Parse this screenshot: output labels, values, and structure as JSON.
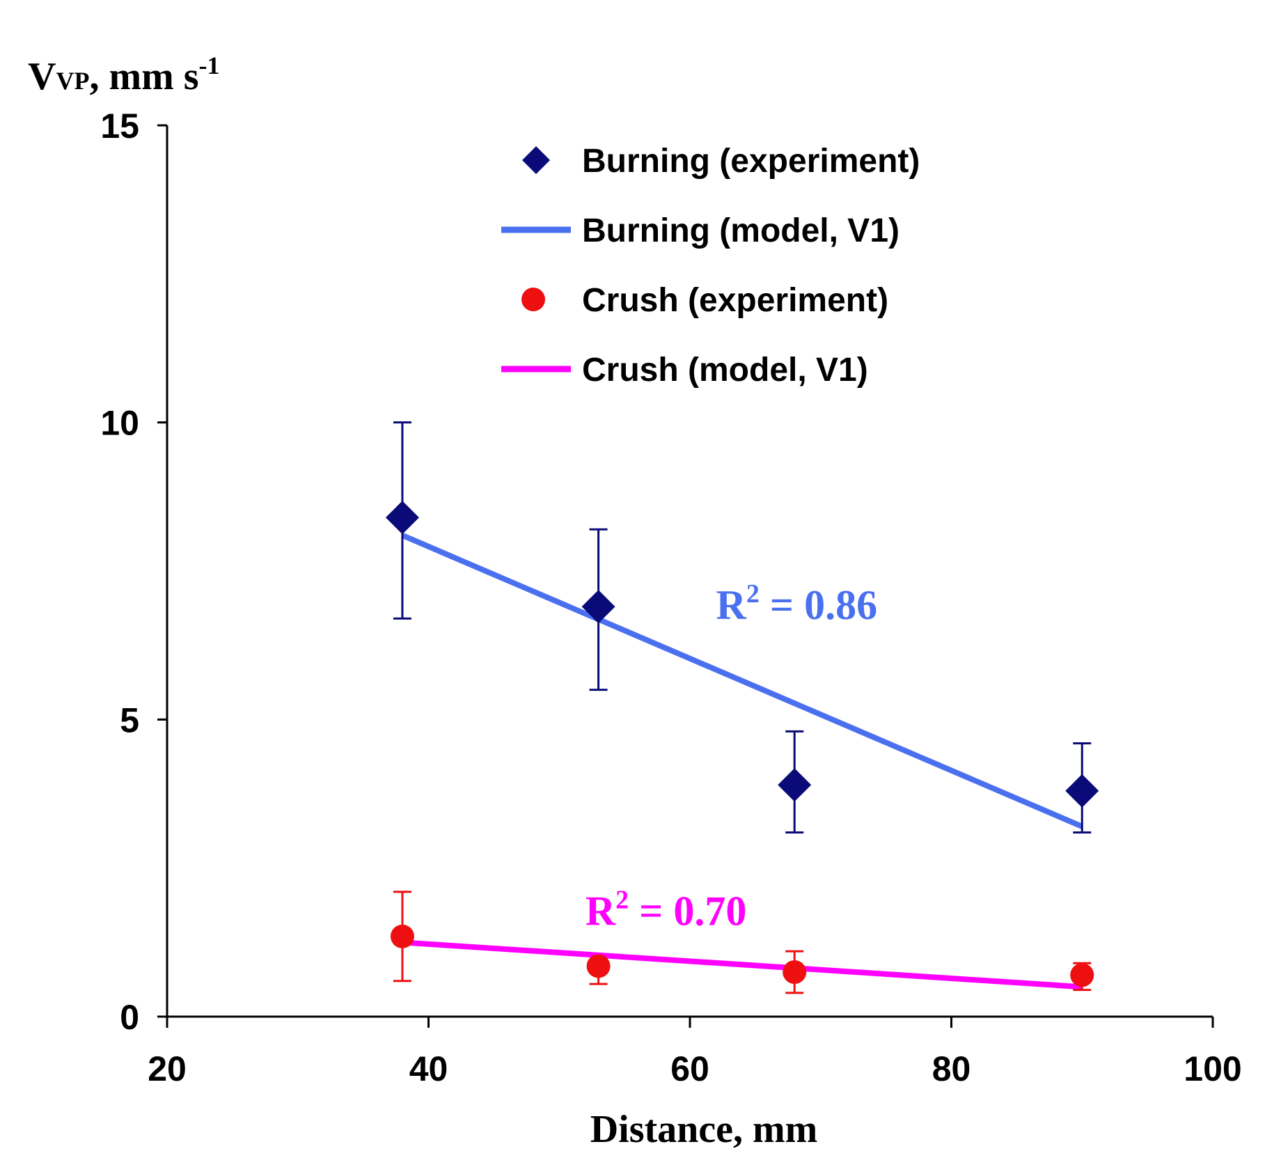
{
  "chart_data": {
    "type": "scatter",
    "title": "",
    "ylabel": {
      "main": "V",
      "sub": "VP",
      "rest": ", mm s",
      "sup": "-1"
    },
    "xlabel": "Distance, mm",
    "xlim": [
      20,
      100
    ],
    "ylim": [
      0,
      15
    ],
    "xticks": [
      "20",
      "40",
      "60",
      "80",
      "100"
    ],
    "yticks": [
      "0",
      "5",
      "10",
      "15"
    ],
    "grid": false,
    "legend_position": "top-center",
    "series": [
      {
        "name": "Burning (experiment)",
        "kind": "points",
        "marker": "diamond",
        "color": "#0a0a78",
        "x": [
          38,
          53,
          68,
          90
        ],
        "y": [
          8.4,
          6.9,
          3.9,
          3.8
        ],
        "err_low": [
          6.7,
          5.5,
          3.1,
          3.1
        ],
        "err_high": [
          10.0,
          8.2,
          4.8,
          4.6
        ]
      },
      {
        "name": "Burning (model, V1)",
        "kind": "line",
        "color": "#4a70f0",
        "x": [
          38,
          90
        ],
        "y": [
          8.1,
          3.2
        ]
      },
      {
        "name": "Crush (experiment)",
        "kind": "points",
        "marker": "circle",
        "color": "#ee1010",
        "x": [
          38,
          53,
          68,
          90
        ],
        "y": [
          1.35,
          0.85,
          0.75,
          0.7
        ],
        "err_low": [
          0.6,
          0.55,
          0.4,
          0.45
        ],
        "err_high": [
          2.1,
          0.85,
          1.1,
          0.9
        ]
      },
      {
        "name": "Crush (model, V1)",
        "kind": "line",
        "color": "#ff00ff",
        "x": [
          38,
          90
        ],
        "y": [
          1.25,
          0.5
        ]
      }
    ],
    "annotations": [
      {
        "id": "r2-burning",
        "prefix": "R",
        "sup": "2",
        "rest": " = 0.86",
        "x": 62,
        "y": 6.9,
        "color": "#4a70f0"
      },
      {
        "id": "r2-crush",
        "prefix": "R",
        "sup": "2",
        "rest": " = 0.70",
        "x": 52,
        "y": 1.75,
        "color": "#ff00ff"
      }
    ]
  }
}
